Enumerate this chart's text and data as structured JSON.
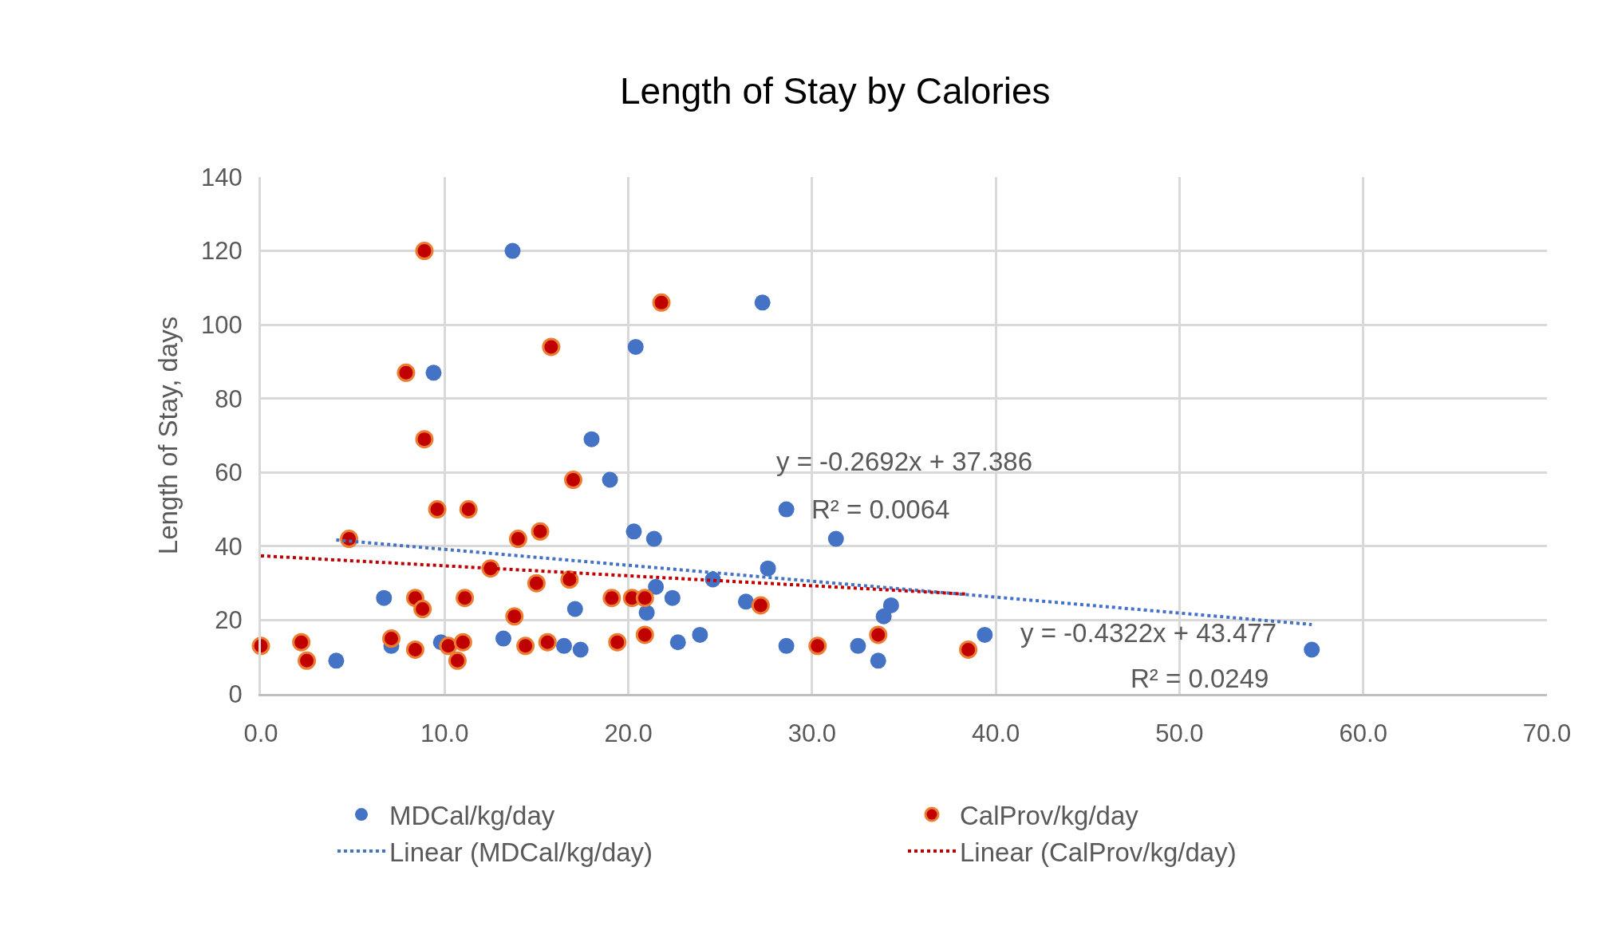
{
  "chart_data": {
    "type": "scatter",
    "title": "Length of Stay by Calories",
    "ylabel": "Length of Stay, days",
    "xlim": [
      0,
      70
    ],
    "xticks": [
      {
        "value": 0,
        "label": "0.0"
      },
      {
        "value": 10,
        "label": "10.0"
      },
      {
        "value": 20,
        "label": "20.0"
      },
      {
        "value": 30,
        "label": "30.0"
      },
      {
        "value": 40,
        "label": "40.0"
      },
      {
        "value": 50,
        "label": "50.0"
      },
      {
        "value": 60,
        "label": "60.0"
      },
      {
        "value": 70,
        "label": "70.0"
      }
    ],
    "ylim": [
      0,
      140
    ],
    "yticks": [
      0,
      20,
      40,
      60,
      80,
      100,
      120,
      140
    ],
    "grid": true,
    "legend": "bottom",
    "marker": "circle",
    "series": [
      {
        "name": "MDCal/kg/day",
        "color": "#4472c4",
        "x": [
          13.7,
          27.3,
          20.4,
          9.4,
          18.0,
          19.0,
          28.6,
          20.3,
          21.4,
          31.3,
          27.6,
          24.6,
          21.5,
          34.3,
          33.9,
          26.4,
          22.4,
          6.7,
          17.1,
          21.0,
          13.2,
          7.1,
          9.8,
          16.5,
          17.4,
          22.7,
          23.9,
          28.6,
          32.5,
          33.6,
          39.4,
          57.2,
          4.1
        ],
        "values": [
          120,
          106,
          94,
          87,
          69,
          58,
          50,
          44,
          42,
          42,
          34,
          31,
          29,
          24,
          21,
          25,
          26,
          26,
          23,
          22,
          15,
          13,
          14,
          13,
          12,
          14,
          16,
          13,
          13,
          9,
          16,
          12,
          9
        ]
      },
      {
        "name": "CalProv/kg/day",
        "color": "#c00000",
        "x": [
          8.9,
          21.8,
          15.8,
          7.9,
          8.9,
          17.0,
          9.6,
          11.3,
          4.8,
          14.0,
          15.2,
          12.5,
          16.8,
          15.0,
          19.1,
          20.2,
          20.9,
          8.4,
          11.1,
          8.8,
          27.2,
          13.8,
          20.9,
          33.6,
          7.1,
          0,
          2.2,
          2.5,
          8.4,
          10.2,
          11.0,
          10.7,
          14.4,
          15.6,
          19.4,
          30.3,
          38.5
        ],
        "values": [
          120,
          106,
          94,
          87,
          69,
          58,
          50,
          50,
          42,
          42,
          44,
          34,
          31,
          30,
          26,
          26,
          26,
          26,
          26,
          23,
          24,
          21,
          16,
          16,
          15,
          13,
          14,
          9,
          12,
          13,
          14,
          9,
          13,
          14,
          14,
          13,
          12
        ]
      },
      {
        "name": "Linear (MDCal/kg/day)",
        "type": "line",
        "marker": "none",
        "line_style": "dotted",
        "color": "#4472c4",
        "x": [
          4.1,
          57.2
        ],
        "values": [
          41.7,
          18.8
        ]
      },
      {
        "name": "Linear (CalProv/kg/day)",
        "type": "line",
        "marker": "none",
        "line_style": "dotted",
        "color": "#c00000",
        "x": [
          0,
          38.5
        ],
        "values": [
          37.4,
          27.0
        ]
      }
    ],
    "annotations": [
      "y = -0.2692x + 37.386",
      "R² = 0.0064",
      "y = -0.4322x + 43.477",
      "R² = 0.0249"
    ]
  }
}
